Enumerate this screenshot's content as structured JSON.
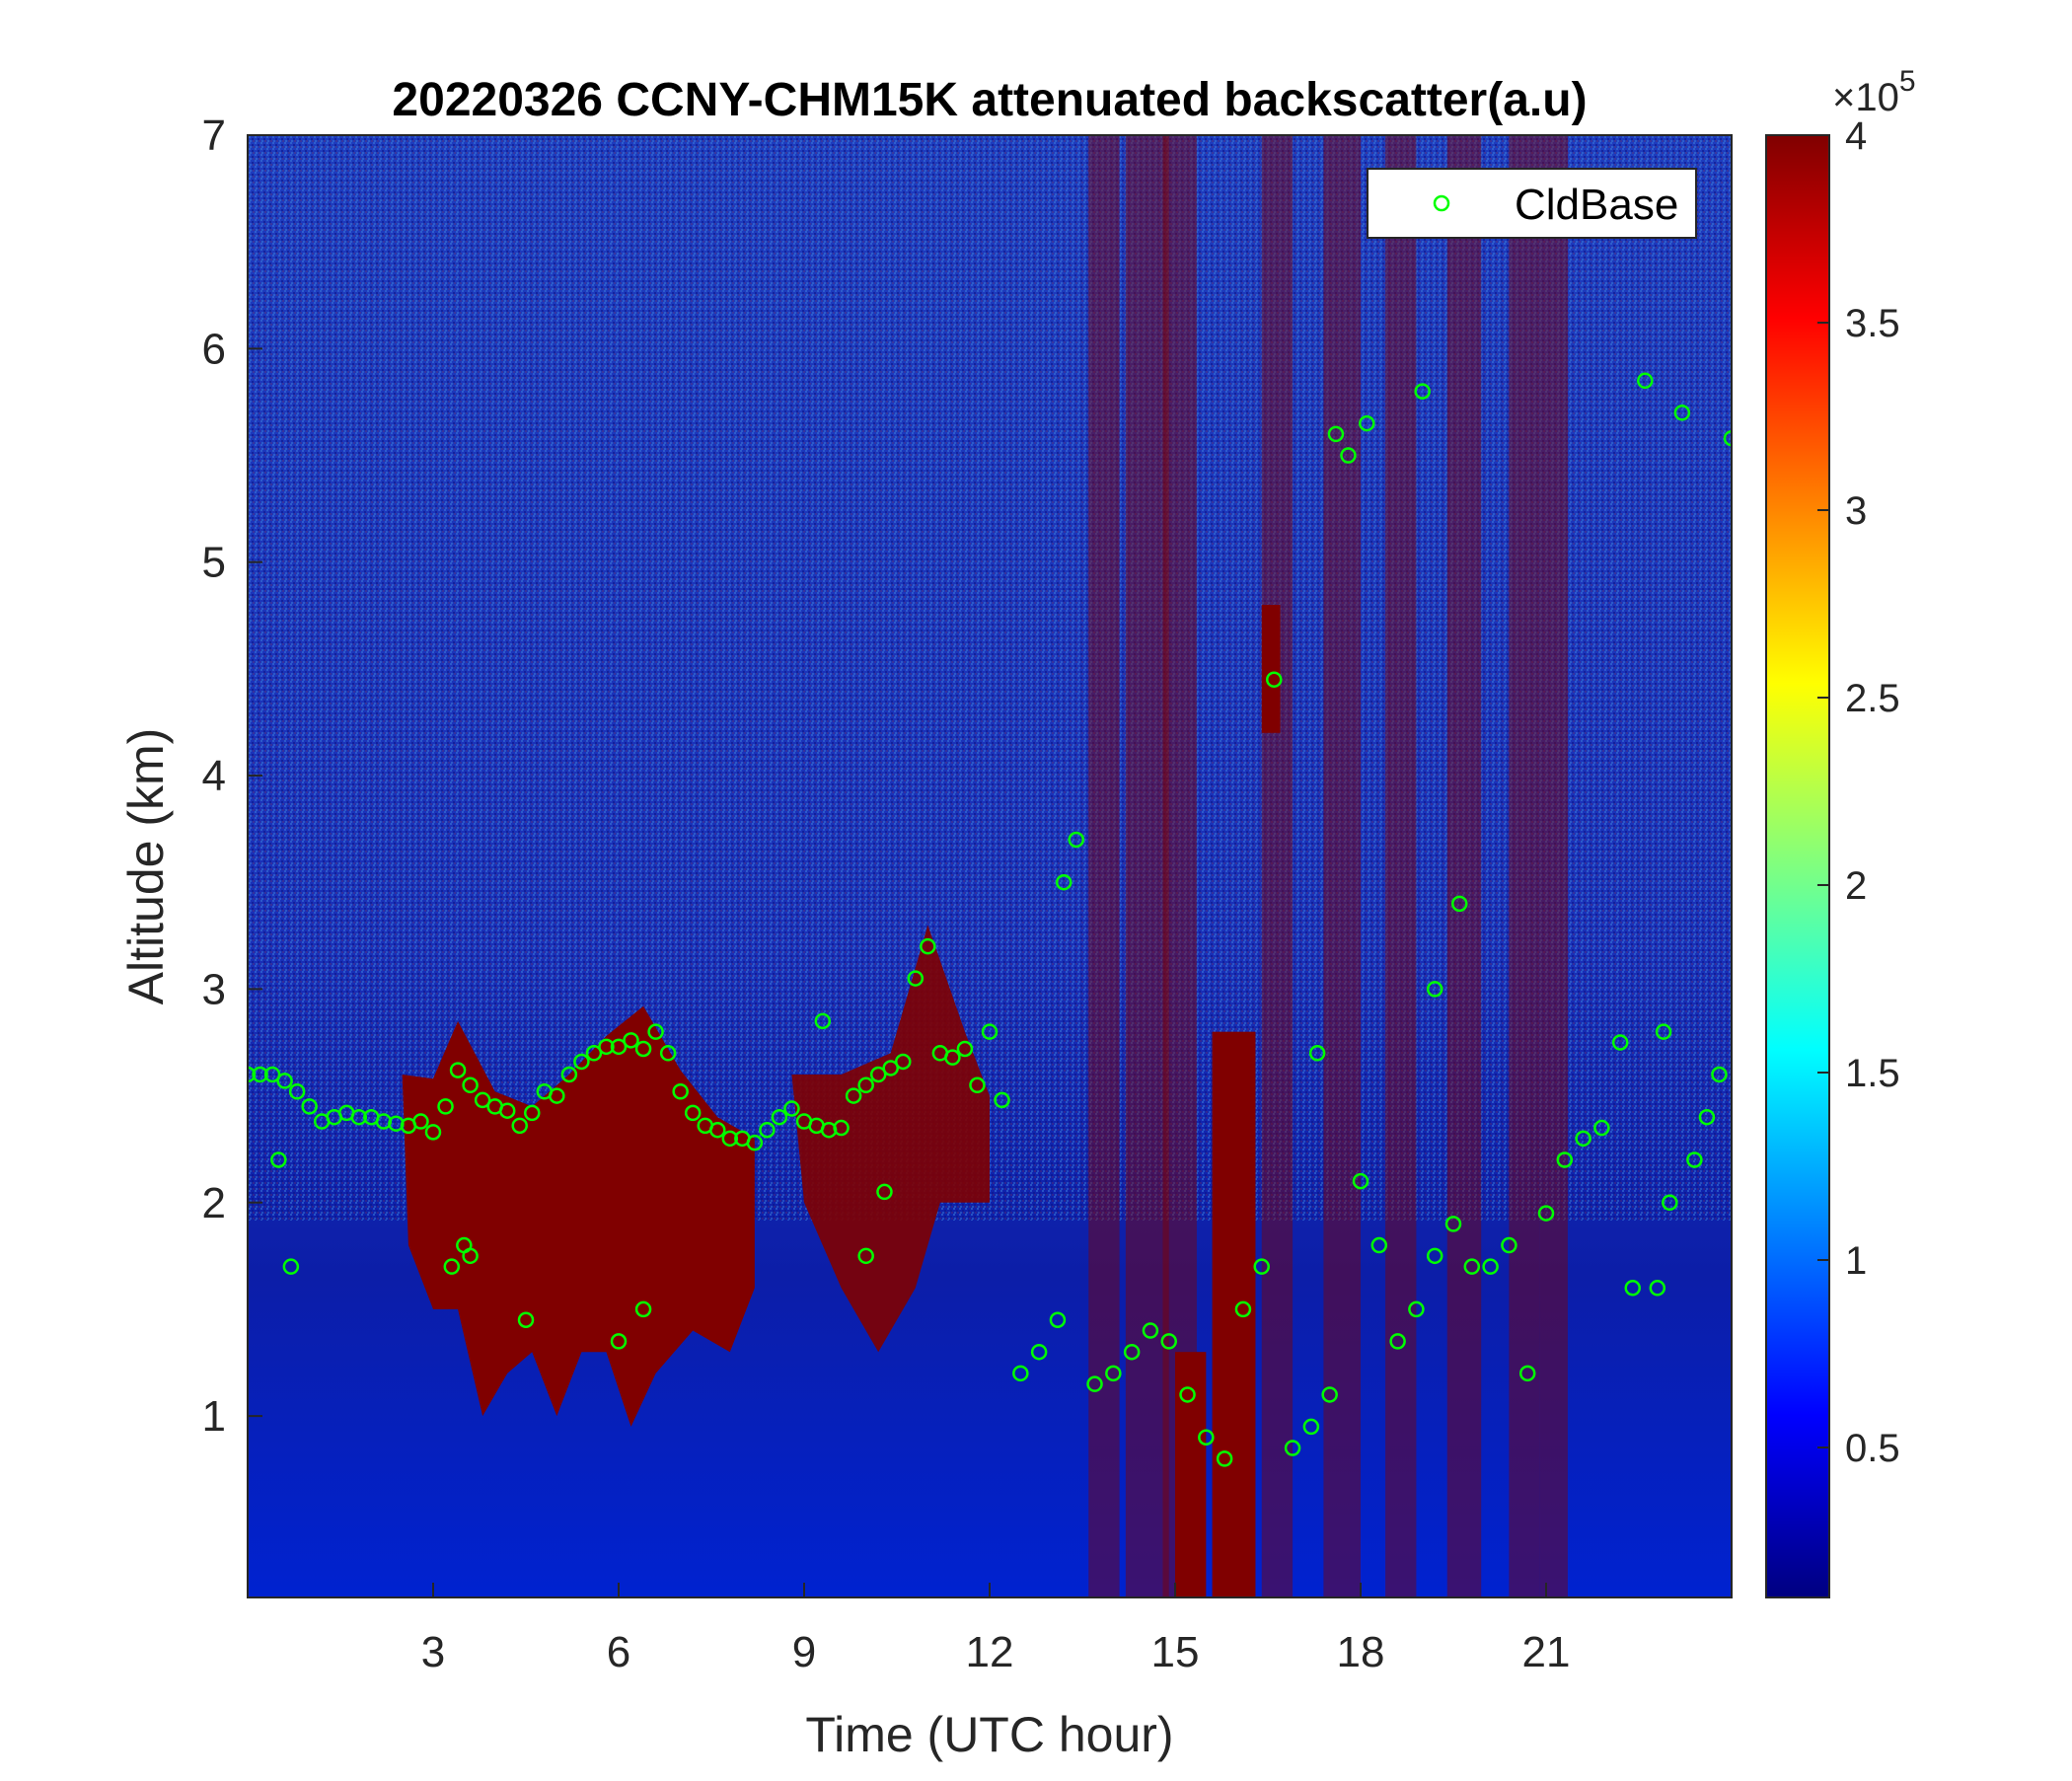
{
  "chart_data": {
    "type": "heatmap",
    "title": "20220326 CCNY-CHM15K attenuated backscatter(a.u)",
    "xlabel": "Time (UTC hour)",
    "ylabel": "Altitude (km)",
    "xlim": [
      0,
      24
    ],
    "ylim": [
      0.15,
      7
    ],
    "xticks": [
      3,
      6,
      9,
      12,
      15,
      18,
      21
    ],
    "xtick_labels": [
      "3",
      "6",
      "9",
      "12",
      "15",
      "18",
      "21"
    ],
    "yticks": [
      1,
      2,
      3,
      4,
      5,
      6,
      7
    ],
    "ytick_labels": [
      "1",
      "2",
      "3",
      "4",
      "5",
      "6",
      "7"
    ],
    "grid": false,
    "colorbar": {
      "colormap": "jet",
      "range": [
        10000,
        400000
      ],
      "ticks": [
        0.5,
        1,
        1.5,
        2,
        2.5,
        3,
        3.5,
        4
      ],
      "tick_labels": [
        "0.5",
        "1",
        "1.5",
        "2",
        "2.5",
        "3",
        "3.5",
        "4"
      ],
      "exponent_label": "×10",
      "exponent_power": "5"
    },
    "legend": {
      "position": "top-right",
      "entries": [
        "CldBase"
      ]
    },
    "colors": {
      "marker": "#00ff00",
      "background_low": "#0000c8",
      "background_high": "#1e3cbe",
      "saturated": "#800000"
    },
    "series": [
      {
        "name": "CldBase",
        "marker": "open-circle",
        "points": [
          [
            0.0,
            2.6
          ],
          [
            0.2,
            2.6
          ],
          [
            0.4,
            2.6
          ],
          [
            0.6,
            2.57
          ],
          [
            0.8,
            2.52
          ],
          [
            1.0,
            2.45
          ],
          [
            1.2,
            2.38
          ],
          [
            1.4,
            2.4
          ],
          [
            1.6,
            2.42
          ],
          [
            1.8,
            2.4
          ],
          [
            2.0,
            2.4
          ],
          [
            2.2,
            2.38
          ],
          [
            2.4,
            2.37
          ],
          [
            2.6,
            2.36
          ],
          [
            2.8,
            2.38
          ],
          [
            3.0,
            2.33
          ],
          [
            3.2,
            2.45
          ],
          [
            3.4,
            2.62
          ],
          [
            3.6,
            2.55
          ],
          [
            3.8,
            2.48
          ],
          [
            4.0,
            2.45
          ],
          [
            4.2,
            2.43
          ],
          [
            4.4,
            2.36
          ],
          [
            4.6,
            2.42
          ],
          [
            4.8,
            2.52
          ],
          [
            5.0,
            2.5
          ],
          [
            5.2,
            2.6
          ],
          [
            5.4,
            2.66
          ],
          [
            5.6,
            2.7
          ],
          [
            5.8,
            2.73
          ],
          [
            6.0,
            2.73
          ],
          [
            6.2,
            2.76
          ],
          [
            6.4,
            2.72
          ],
          [
            6.6,
            2.8
          ],
          [
            6.8,
            2.7
          ],
          [
            7.0,
            2.52
          ],
          [
            7.2,
            2.42
          ],
          [
            7.4,
            2.36
          ],
          [
            7.6,
            2.34
          ],
          [
            7.8,
            2.3
          ],
          [
            8.0,
            2.3
          ],
          [
            8.2,
            2.28
          ],
          [
            8.4,
            2.34
          ],
          [
            8.6,
            2.4
          ],
          [
            8.8,
            2.44
          ],
          [
            9.0,
            2.38
          ],
          [
            9.2,
            2.36
          ],
          [
            9.4,
            2.34
          ],
          [
            9.6,
            2.35
          ],
          [
            9.8,
            2.5
          ],
          [
            10.0,
            2.55
          ],
          [
            10.2,
            2.6
          ],
          [
            10.4,
            2.63
          ],
          [
            10.6,
            2.66
          ],
          [
            10.8,
            3.05
          ],
          [
            11.0,
            3.2
          ],
          [
            11.2,
            2.7
          ],
          [
            11.4,
            2.68
          ],
          [
            11.6,
            2.72
          ],
          [
            11.8,
            2.55
          ],
          [
            12.0,
            2.8
          ],
          [
            12.2,
            2.48
          ],
          [
            12.5,
            1.2
          ],
          [
            12.8,
            1.3
          ],
          [
            13.1,
            1.45
          ],
          [
            13.4,
            3.7
          ],
          [
            13.7,
            1.15
          ],
          [
            14.0,
            1.2
          ],
          [
            14.3,
            1.3
          ],
          [
            14.6,
            1.4
          ],
          [
            14.9,
            1.35
          ],
          [
            15.2,
            1.1
          ],
          [
            15.5,
            0.9
          ],
          [
            15.8,
            0.8
          ],
          [
            16.1,
            1.5
          ],
          [
            16.4,
            1.7
          ],
          [
            16.6,
            4.45
          ],
          [
            16.9,
            0.85
          ],
          [
            17.2,
            0.95
          ],
          [
            17.5,
            1.1
          ],
          [
            17.6,
            5.6
          ],
          [
            17.8,
            5.5
          ],
          [
            18.0,
            2.1
          ],
          [
            18.3,
            1.8
          ],
          [
            18.6,
            1.35
          ],
          [
            18.9,
            1.5
          ],
          [
            19.0,
            5.8
          ],
          [
            19.2,
            1.75
          ],
          [
            19.5,
            1.9
          ],
          [
            19.8,
            1.7
          ],
          [
            20.1,
            1.7
          ],
          [
            20.4,
            1.8
          ],
          [
            20.7,
            1.2
          ],
          [
            21.0,
            1.95
          ],
          [
            21.3,
            2.2
          ],
          [
            21.6,
            2.3
          ],
          [
            21.9,
            2.35
          ],
          [
            22.2,
            2.75
          ],
          [
            22.4,
            1.6
          ],
          [
            22.6,
            5.85
          ],
          [
            22.8,
            1.6
          ],
          [
            23.0,
            2.0
          ],
          [
            23.2,
            5.7
          ],
          [
            23.4,
            2.2
          ],
          [
            23.6,
            2.4
          ],
          [
            23.8,
            2.6
          ],
          [
            24.0,
            5.58
          ],
          [
            0.5,
            2.2
          ],
          [
            0.7,
            1.7
          ],
          [
            3.3,
            1.7
          ],
          [
            3.5,
            1.8
          ],
          [
            3.6,
            1.75
          ],
          [
            4.5,
            1.45
          ],
          [
            6.0,
            1.35
          ],
          [
            6.4,
            1.5
          ],
          [
            10.0,
            1.75
          ],
          [
            10.3,
            2.05
          ],
          [
            9.3,
            2.85
          ],
          [
            17.3,
            2.7
          ],
          [
            18.1,
            5.65
          ],
          [
            19.6,
            3.4
          ],
          [
            19.2,
            3.0
          ],
          [
            22.9,
            2.8
          ],
          [
            13.2,
            3.5
          ]
        ]
      }
    ]
  }
}
